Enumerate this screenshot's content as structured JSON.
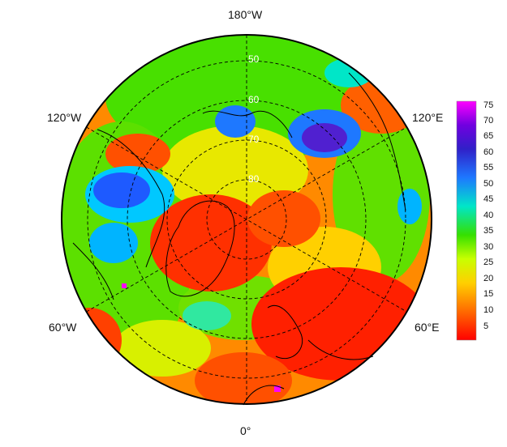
{
  "map": {
    "projection": "north polar stereographic",
    "longitude_labels": {
      "top": "180°W",
      "bottom": "0°",
      "upper_left": "120°W",
      "upper_right": "120°E",
      "lower_left": "60°W",
      "lower_right": "60°E"
    },
    "latitude_labels": [
      "50",
      "60",
      "70",
      "80"
    ],
    "colorbar": {
      "ticks": [
        "75",
        "70",
        "65",
        "60",
        "55",
        "50",
        "45",
        "40",
        "35",
        "30",
        "25",
        "20",
        "15",
        "10",
        "5"
      ],
      "min": 0,
      "max": 78,
      "colors": [
        "#ff0000",
        "#ff6a00",
        "#ffd000",
        "#c8ff00",
        "#35e000",
        "#00e6c8",
        "#1e78ff",
        "#3020c8",
        "#7000e0",
        "#ff00ff"
      ]
    }
  }
}
